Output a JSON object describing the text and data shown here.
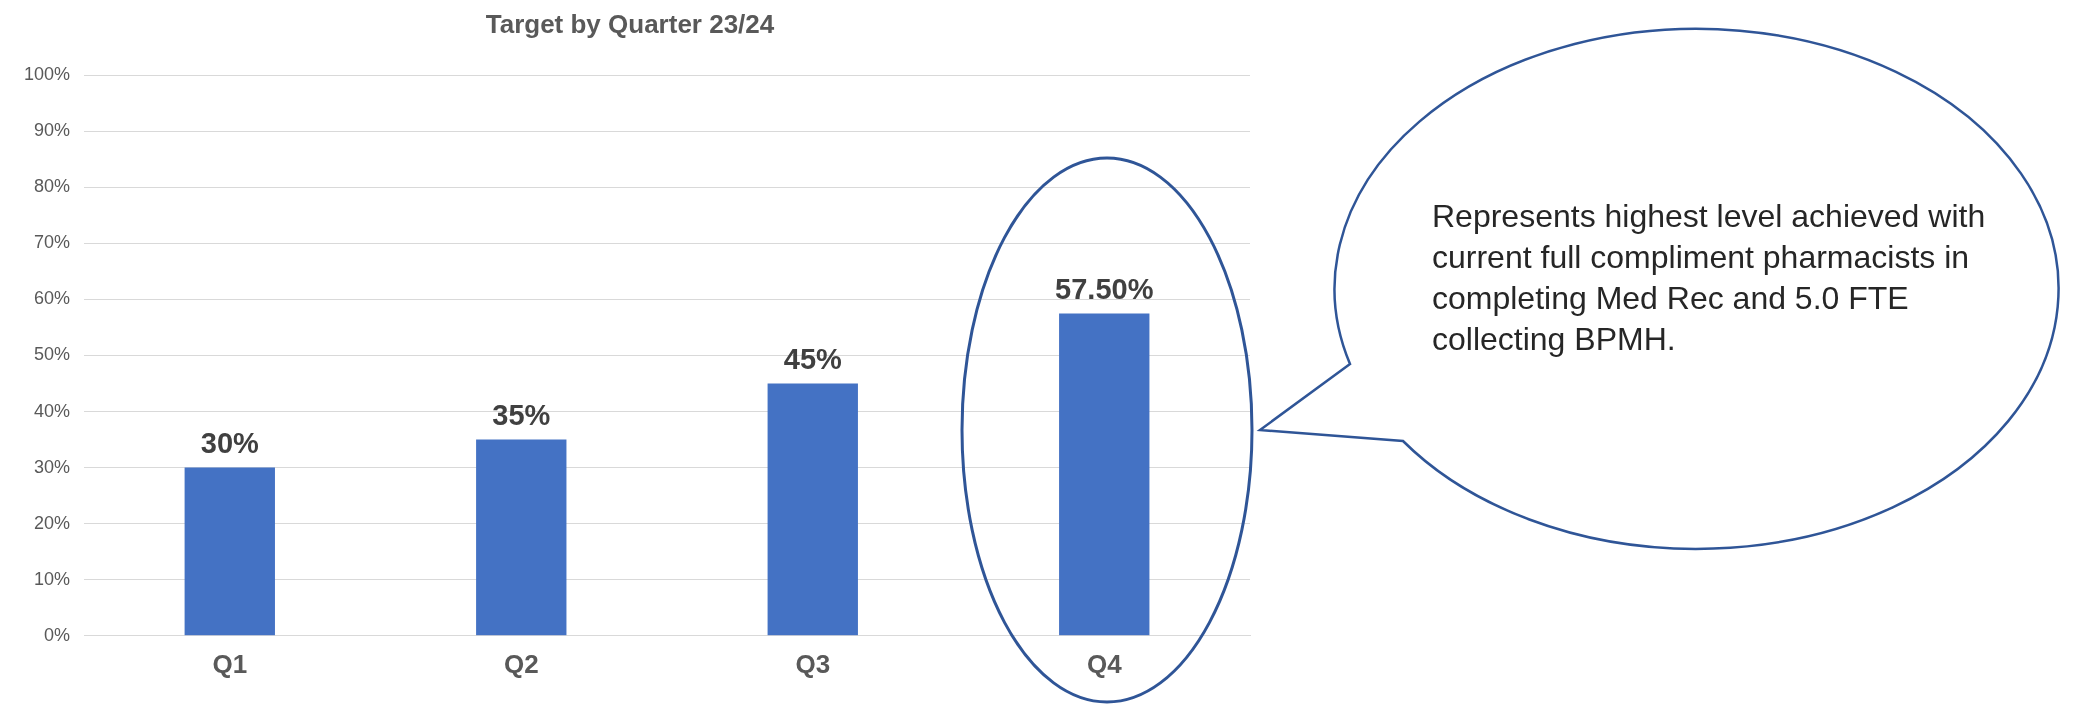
{
  "chart_data": {
    "type": "bar",
    "title": "Target by Quarter 23/24",
    "categories": [
      "Q1",
      "Q2",
      "Q3",
      "Q4"
    ],
    "values": [
      30,
      35,
      45,
      57.5
    ],
    "color": "#4472c4",
    "value_labels": [
      "30%",
      "35%",
      "45%",
      "57.50%"
    ],
    "ylim": [
      0,
      100
    ],
    "yticks": [
      {
        "value": 0,
        "label": "0%"
      },
      {
        "value": 10,
        "label": "10%"
      },
      {
        "value": 20,
        "label": "20%"
      },
      {
        "value": 30,
        "label": "30%"
      },
      {
        "value": 40,
        "label": "40%"
      },
      {
        "value": 50,
        "label": "50%"
      },
      {
        "value": 60,
        "label": "60%"
      },
      {
        "value": 70,
        "label": "70%"
      },
      {
        "value": 80,
        "label": "80%"
      },
      {
        "value": 90,
        "label": "90%"
      },
      {
        "value": 100,
        "label": "100%"
      }
    ],
    "grid": "y",
    "annotations": [
      "Represents highest level achieved with current full compliment pharmacists in completing Med Rec and 5.0 FTE collecting BPMH."
    ]
  }
}
